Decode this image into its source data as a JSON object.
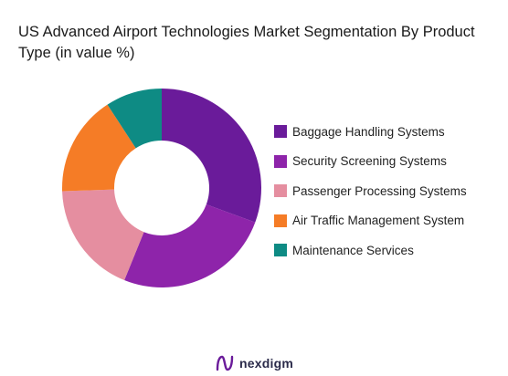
{
  "title": "US Advanced Airport Technologies Market Segmentation By Product Type (in value %)",
  "chart_data": {
    "type": "pie",
    "variant": "donut",
    "title": "US Advanced Airport Technologies Market Segmentation By Product Type (in value %)",
    "categories": [
      "Baggage Handling Systems",
      "Security Screening Systems",
      "Passenger Processing Systems",
      "Air Traffic Management System",
      "Maintenance Services"
    ],
    "values": [
      30,
      25,
      18,
      16,
      9
    ],
    "colors": [
      "#6a1b9a",
      "#8e24aa",
      "#e58ea0",
      "#f57c26",
      "#0e8b84"
    ],
    "legend_placement": "right"
  },
  "brand": {
    "name": "nexdigm",
    "logo_color": "#6a1b9a"
  }
}
